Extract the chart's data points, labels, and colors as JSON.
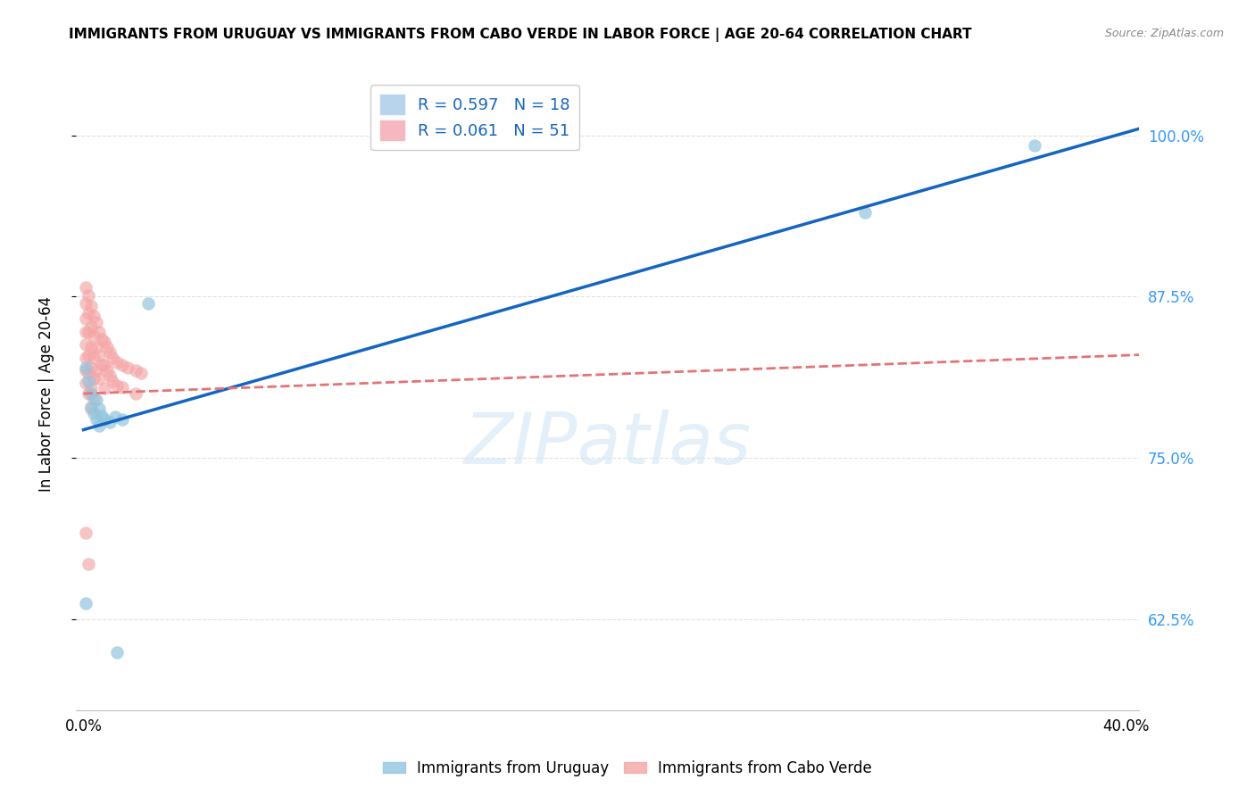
{
  "title": "IMMIGRANTS FROM URUGUAY VS IMMIGRANTS FROM CABO VERDE IN LABOR FORCE | AGE 20-64 CORRELATION CHART",
  "source": "Source: ZipAtlas.com",
  "xlabel_ticks_positions": [
    0.0,
    0.05,
    0.1,
    0.15,
    0.2,
    0.25,
    0.3,
    0.35,
    0.4
  ],
  "xlabel_ticks_labels": [
    "0.0%",
    "",
    "",
    "",
    "",
    "",
    "",
    "",
    "40.0%"
  ],
  "ylabel": "In Labor Force | Age 20-64",
  "ylabel_ticks": [
    "62.5%",
    "75.0%",
    "87.5%",
    "100.0%"
  ],
  "ylabel_values": [
    0.625,
    0.75,
    0.875,
    1.0
  ],
  "ylim": [
    0.555,
    1.045
  ],
  "xlim": [
    -0.003,
    0.405
  ],
  "watermark_text": "ZIPatlas",
  "uruguay_x": [
    0.001,
    0.002,
    0.003,
    0.003,
    0.004,
    0.005,
    0.005,
    0.006,
    0.006,
    0.007,
    0.008,
    0.01,
    0.012,
    0.015,
    0.025,
    0.3,
    0.365,
    0.001,
    0.013
  ],
  "uruguay_y": [
    0.82,
    0.81,
    0.8,
    0.79,
    0.785,
    0.78,
    0.795,
    0.788,
    0.775,
    0.783,
    0.78,
    0.778,
    0.782,
    0.78,
    0.87,
    0.94,
    0.992,
    0.638,
    0.6
  ],
  "caboverde_x": [
    0.001,
    0.001,
    0.001,
    0.001,
    0.001,
    0.001,
    0.001,
    0.001,
    0.002,
    0.002,
    0.002,
    0.002,
    0.002,
    0.002,
    0.003,
    0.003,
    0.003,
    0.003,
    0.003,
    0.003,
    0.004,
    0.004,
    0.004,
    0.004,
    0.004,
    0.005,
    0.005,
    0.005,
    0.006,
    0.006,
    0.006,
    0.007,
    0.007,
    0.008,
    0.008,
    0.008,
    0.009,
    0.009,
    0.01,
    0.01,
    0.011,
    0.011,
    0.013,
    0.013,
    0.015,
    0.015,
    0.017,
    0.02,
    0.02,
    0.022,
    0.001,
    0.002
  ],
  "caboverde_y": [
    0.882,
    0.87,
    0.858,
    0.848,
    0.838,
    0.828,
    0.818,
    0.808,
    0.876,
    0.862,
    0.848,
    0.83,
    0.816,
    0.8,
    0.868,
    0.852,
    0.836,
    0.82,
    0.804,
    0.788,
    0.86,
    0.845,
    0.828,
    0.812,
    0.796,
    0.855,
    0.836,
    0.818,
    0.848,
    0.83,
    0.812,
    0.842,
    0.822,
    0.84,
    0.822,
    0.804,
    0.836,
    0.818,
    0.832,
    0.814,
    0.828,
    0.81,
    0.824,
    0.806,
    0.822,
    0.805,
    0.82,
    0.818,
    0.8,
    0.816,
    0.692,
    0.668
  ],
  "uruguay_color": "#92c5de",
  "caboverde_color": "#f4a5a5",
  "uruguay_line_color": "#1565c0",
  "caboverde_line_color": "#e57373",
  "grid_color": "#dddddd",
  "background_color": "#ffffff",
  "uru_trend_x0": 0.0,
  "uru_trend_y0": 0.772,
  "uru_trend_x1": 0.405,
  "uru_trend_y1": 1.005,
  "cv_trend_x0": 0.0,
  "cv_trend_y0": 0.8,
  "cv_trend_x1": 0.405,
  "cv_trend_y1": 0.83
}
